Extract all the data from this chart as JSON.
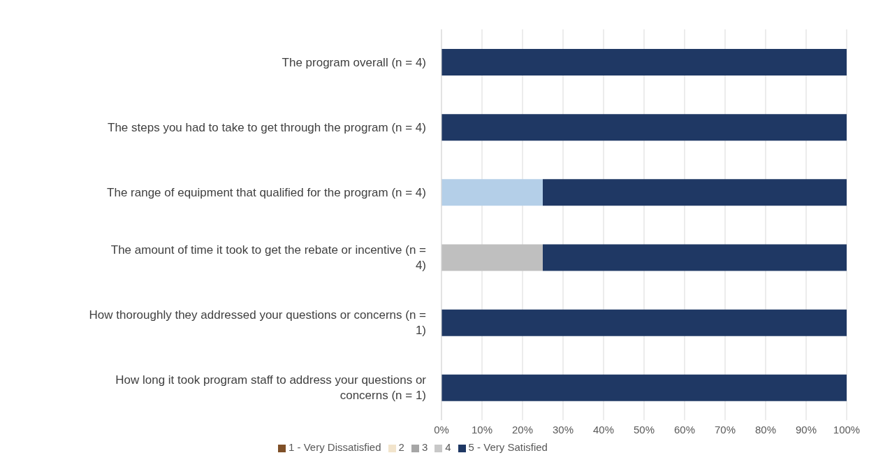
{
  "chart_data": {
    "type": "bar",
    "orientation": "horizontal",
    "stacked": true,
    "categories": [
      "The program overall (n = 4)",
      "The steps you had to take to get through the program (n = 4)",
      "The range of equipment that qualified for the program (n = 4)",
      "The amount of time it took to get the rebate or incentive (n = 4)",
      "How thoroughly they addressed your questions or concerns (n = 1)",
      "How long it took program staff to address your questions or concerns (n = 1)"
    ],
    "series": [
      {
        "name": "1 - Very Dissatisfied",
        "color": "#7f5028",
        "values": [
          0,
          0,
          0,
          0,
          0,
          0
        ]
      },
      {
        "name": "2",
        "color": "#f2e4cc",
        "values": [
          0,
          0,
          0,
          0,
          0,
          0
        ]
      },
      {
        "name": "3",
        "color": "#a6a6a6",
        "values": [
          0,
          0,
          0,
          0,
          0,
          0
        ]
      },
      {
        "name": "4",
        "color": "#c8c8c8",
        "values": [
          0,
          0,
          25,
          25,
          0,
          0
        ],
        "colors": [
          "#c8c8c8",
          "#c8c8c8",
          "#b4cfe8",
          "#bfbfbf",
          "#c8c8c8",
          "#c8c8c8"
        ]
      },
      {
        "name": "5 - Very Satisfied",
        "color": "#1f3864",
        "values": [
          100,
          100,
          75,
          75,
          100,
          100
        ]
      }
    ],
    "xlim": [
      0,
      100
    ],
    "xticks": [
      {
        "value": 0,
        "label": "0%"
      },
      {
        "value": 10,
        "label": "10%"
      },
      {
        "value": 20,
        "label": "20%"
      },
      {
        "value": 30,
        "label": "30%"
      },
      {
        "value": 40,
        "label": "40%"
      },
      {
        "value": 50,
        "label": "50%"
      },
      {
        "value": 60,
        "label": "60%"
      },
      {
        "value": 70,
        "label": "70%"
      },
      {
        "value": 80,
        "label": "80%"
      },
      {
        "value": 90,
        "label": "90%"
      },
      {
        "value": 100,
        "label": "100%"
      }
    ],
    "grid": "x",
    "legend": "bottom left"
  }
}
